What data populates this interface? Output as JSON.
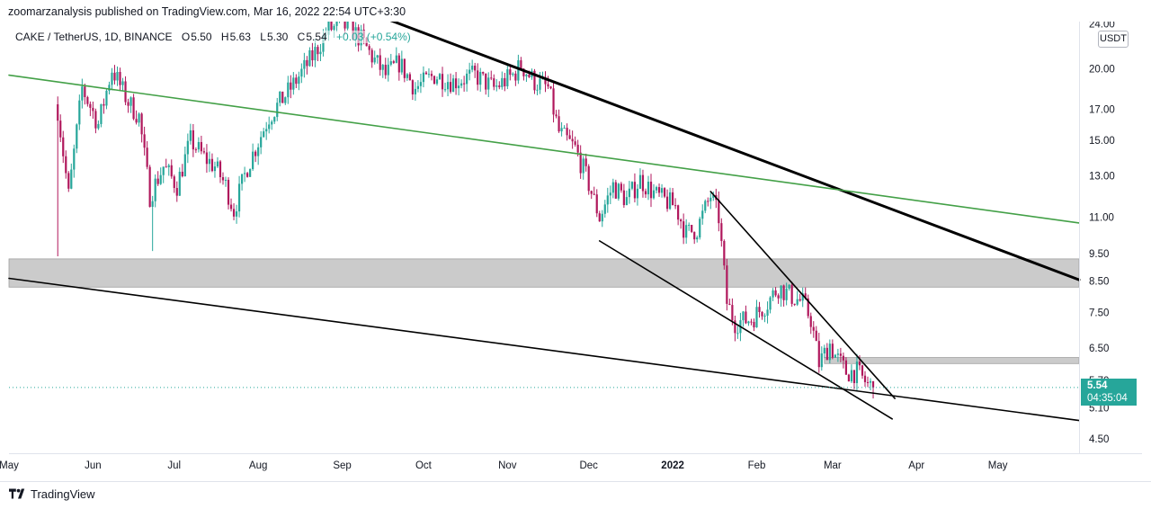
{
  "publish_line": "zoomarzanalysis published on TradingView.com, Mar 16, 2022 22:54 UTC+3:30",
  "legend": {
    "symbol": "CAKE / TetherUS, 1D, BINANCE",
    "open_label": "O",
    "open": "5.50",
    "high_label": "H",
    "high": "5.63",
    "low_label": "L",
    "low": "5.30",
    "close_label": "C",
    "close": "5.54",
    "change": "+0.03 (+0.54%)"
  },
  "quote_currency": "USDT",
  "price_tag": {
    "price": "5.54",
    "countdown": "04:35:04"
  },
  "footer": {
    "brand": "TradingView"
  },
  "colors": {
    "up": "#26a69a",
    "down": "#b0175c",
    "green_trendline": "#43a047",
    "zone": "#c8c8c8",
    "last_price_line": "#26a69a"
  },
  "chart_data": {
    "type": "candlestick",
    "symbol": "CAKE / TetherUS",
    "interval": "1D",
    "exchange": "BINANCE",
    "y_scale": "log",
    "ylim": [
      4.25,
      24.2
    ],
    "y_ticks": [
      "24.00",
      "20.00",
      "17.00",
      "15.00",
      "13.00",
      "11.00",
      "9.50",
      "8.50",
      "7.50",
      "6.50",
      "5.70",
      "5.10",
      "4.50"
    ],
    "x_range": [
      "2021-05-01",
      "2022-05-31"
    ],
    "x_ticks": [
      {
        "date": "2021-05-01",
        "label": "May"
      },
      {
        "date": "2021-06-01",
        "label": "Jun"
      },
      {
        "date": "2021-07-01",
        "label": "Jul"
      },
      {
        "date": "2021-08-01",
        "label": "Aug"
      },
      {
        "date": "2021-09-01",
        "label": "Sep"
      },
      {
        "date": "2021-10-01",
        "label": "Oct"
      },
      {
        "date": "2021-11-01",
        "label": "Nov"
      },
      {
        "date": "2021-12-01",
        "label": "Dec"
      },
      {
        "date": "2022-01-01",
        "label": "2022"
      },
      {
        "date": "2022-02-01",
        "label": "Feb"
      },
      {
        "date": "2022-03-01",
        "label": "Mar"
      },
      {
        "date": "2022-04-01",
        "label": "Apr"
      },
      {
        "date": "2022-05-01",
        "label": "May"
      }
    ],
    "last_price": 5.54,
    "close_path": [
      [
        "2021-05-19",
        17.0
      ],
      [
        "2021-05-23",
        12.0
      ],
      [
        "2021-05-28",
        18.5
      ],
      [
        "2021-06-03",
        16.0
      ],
      [
        "2021-06-08",
        20.0
      ],
      [
        "2021-06-14",
        17.5
      ],
      [
        "2021-06-18",
        16.5
      ],
      [
        "2021-06-22",
        12.0
      ],
      [
        "2021-06-27",
        13.5
      ],
      [
        "2021-07-02",
        12.5
      ],
      [
        "2021-07-07",
        15.0
      ],
      [
        "2021-07-12",
        14.0
      ],
      [
        "2021-07-16",
        13.5
      ],
      [
        "2021-07-20",
        12.5
      ],
      [
        "2021-07-23",
        11.3
      ],
      [
        "2021-07-28",
        13.5
      ],
      [
        "2021-08-05",
        16.5
      ],
      [
        "2021-08-13",
        18.5
      ],
      [
        "2021-08-21",
        21.0
      ],
      [
        "2021-08-27",
        23.5
      ],
      [
        "2021-09-03",
        23.8
      ],
      [
        "2021-09-08",
        22.5
      ],
      [
        "2021-09-12",
        21.0
      ],
      [
        "2021-09-17",
        19.5
      ],
      [
        "2021-09-22",
        20.5
      ],
      [
        "2021-09-28",
        18.5
      ],
      [
        "2021-10-05",
        19.5
      ],
      [
        "2021-10-12",
        19.0
      ],
      [
        "2021-10-20",
        19.5
      ],
      [
        "2021-10-27",
        18.5
      ],
      [
        "2021-11-03",
        19.5
      ],
      [
        "2021-11-06",
        20.3
      ],
      [
        "2021-11-11",
        19.0
      ],
      [
        "2021-11-16",
        18.5
      ],
      [
        "2021-11-20",
        15.5
      ],
      [
        "2021-11-26",
        14.5
      ],
      [
        "2021-11-30",
        13.0
      ],
      [
        "2021-12-05",
        11.0
      ],
      [
        "2021-12-10",
        12.5
      ],
      [
        "2021-12-15",
        11.8
      ],
      [
        "2021-12-20",
        12.8
      ],
      [
        "2021-12-26",
        12.0
      ],
      [
        "2022-01-02",
        11.5
      ],
      [
        "2022-01-06",
        10.3
      ],
      [
        "2022-01-10",
        10.5
      ],
      [
        "2022-01-15",
        12.0
      ],
      [
        "2022-01-18",
        11.0
      ],
      [
        "2022-01-21",
        7.8
      ],
      [
        "2022-01-24",
        7.2
      ],
      [
        "2022-01-30",
        7.3
      ],
      [
        "2022-02-05",
        7.8
      ],
      [
        "2022-02-09",
        8.3
      ],
      [
        "2022-02-14",
        8.0
      ],
      [
        "2022-02-18",
        7.8
      ],
      [
        "2022-02-21",
        7.3
      ],
      [
        "2022-02-24",
        6.1
      ],
      [
        "2022-02-28",
        6.6
      ],
      [
        "2022-03-02",
        6.3
      ],
      [
        "2022-03-06",
        5.9
      ],
      [
        "2022-03-10",
        5.9
      ],
      [
        "2022-03-14",
        5.6
      ],
      [
        "2022-03-16",
        5.54
      ]
    ],
    "spike_lows": [
      [
        "2021-05-19",
        9.4
      ],
      [
        "2021-06-23",
        9.6
      ]
    ],
    "drawings": [
      {
        "name": "descending-resistance-line",
        "style": "thick",
        "color": "#000000",
        "points": [
          [
            "2021-09-19",
            24.3
          ],
          [
            "2022-05-31",
            8.55
          ]
        ]
      },
      {
        "name": "long-term-green-trendline",
        "style": "normal",
        "color": "#43a047",
        "points": [
          [
            "2021-05-01",
            19.5
          ],
          [
            "2022-05-31",
            10.75
          ]
        ]
      },
      {
        "name": "long-term-support-line",
        "style": "normal",
        "color": "#000000",
        "points": [
          [
            "2021-05-01",
            8.6
          ],
          [
            "2022-05-31",
            4.85
          ]
        ]
      },
      {
        "name": "wedge-upper-line",
        "style": "normal",
        "color": "#000000",
        "points": [
          [
            "2022-01-15",
            12.2
          ],
          [
            "2022-03-24",
            5.3
          ]
        ]
      },
      {
        "name": "wedge-lower-line",
        "style": "normal",
        "color": "#000000",
        "points": [
          [
            "2021-12-05",
            10.0
          ],
          [
            "2022-03-23",
            4.88
          ]
        ]
      }
    ],
    "zones": [
      {
        "name": "major-resistance-zone",
        "from": "2021-05-01",
        "to": "2022-05-31",
        "low": 8.3,
        "high": 9.3
      },
      {
        "name": "minor-resistance-zone",
        "from": "2022-02-26",
        "to": "2022-05-31",
        "low": 6.1,
        "high": 6.25
      }
    ]
  }
}
